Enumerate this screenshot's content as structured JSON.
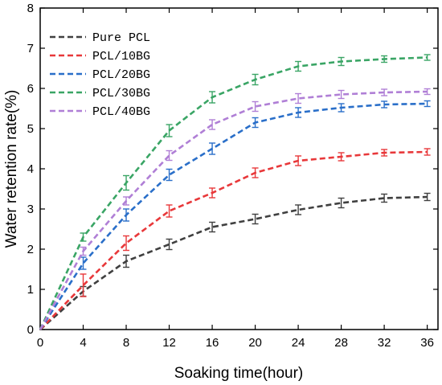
{
  "chart_data": {
    "type": "line",
    "xlabel": "Soaking time(hour)",
    "ylabel": "Water retention rate(%)",
    "xlim": [
      0,
      37
    ],
    "ylim": [
      0,
      8
    ],
    "x_ticks": [
      0,
      4,
      8,
      12,
      16,
      20,
      24,
      28,
      32,
      36
    ],
    "y_ticks": [
      0,
      1,
      2,
      3,
      4,
      5,
      6,
      7,
      8
    ],
    "grid": false,
    "legend_position": "top-left",
    "x": [
      0,
      4,
      8,
      12,
      16,
      20,
      24,
      28,
      32,
      36
    ],
    "series": [
      {
        "name": "Pure PCL",
        "color": "#404040",
        "values": [
          0,
          0.95,
          1.7,
          2.12,
          2.55,
          2.75,
          2.98,
          3.15,
          3.27,
          3.3
        ],
        "errors": [
          0,
          0.12,
          0.15,
          0.13,
          0.12,
          0.12,
          0.12,
          0.12,
          0.1,
          0.09
        ]
      },
      {
        "name": "PCL/10BG",
        "color": "#e8383a",
        "values": [
          0,
          1.1,
          2.15,
          2.95,
          3.4,
          3.9,
          4.2,
          4.3,
          4.4,
          4.42
        ],
        "errors": [
          0,
          0.28,
          0.18,
          0.15,
          0.12,
          0.12,
          0.12,
          0.1,
          0.08,
          0.08
        ]
      },
      {
        "name": "PCL/20BG",
        "color": "#2a6fc9",
        "values": [
          0,
          1.65,
          2.85,
          3.85,
          4.5,
          5.15,
          5.4,
          5.52,
          5.6,
          5.62
        ],
        "errors": [
          0,
          0.15,
          0.15,
          0.14,
          0.14,
          0.12,
          0.12,
          0.1,
          0.08,
          0.07
        ]
      },
      {
        "name": "PCL/30BG",
        "color": "#3aa565",
        "values": [
          0,
          2.3,
          3.65,
          4.95,
          5.78,
          6.22,
          6.55,
          6.67,
          6.73,
          6.77
        ],
        "errors": [
          0,
          0.1,
          0.18,
          0.15,
          0.14,
          0.13,
          0.12,
          0.1,
          0.08,
          0.07
        ]
      },
      {
        "name": "PCL/40BG",
        "color": "#b07fd6",
        "values": [
          0,
          1.95,
          3.2,
          4.33,
          5.1,
          5.55,
          5.75,
          5.85,
          5.9,
          5.92
        ],
        "errors": [
          0,
          0.1,
          0.1,
          0.12,
          0.12,
          0.12,
          0.12,
          0.1,
          0.08,
          0.07
        ]
      }
    ]
  }
}
